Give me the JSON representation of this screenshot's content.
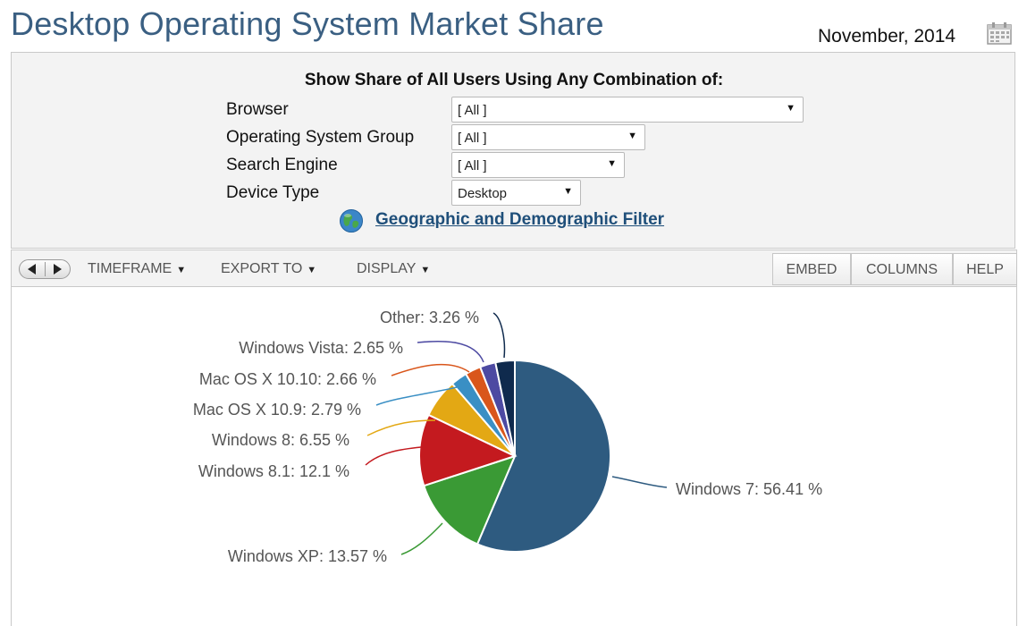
{
  "header": {
    "title": "Desktop Operating System Market Share",
    "date": "November, 2014"
  },
  "filters": {
    "heading": "Show Share of All Users Using Any Combination of:",
    "rows": [
      {
        "label": "Browser",
        "value": "[ All ]"
      },
      {
        "label": "Operating System Group",
        "value": "[ All ]"
      },
      {
        "label": "Search Engine",
        "value": "[ All ]"
      },
      {
        "label": "Device Type",
        "value": "Desktop"
      }
    ],
    "geo_link": "Geographic and Demographic Filter"
  },
  "toolbar": {
    "menus": [
      "TIMEFRAME",
      "EXPORT TO",
      "DISPLAY"
    ],
    "buttons": [
      "EMBED",
      "COLUMNS",
      "HELP"
    ]
  },
  "chart_data": {
    "type": "pie",
    "slices": [
      {
        "name": "Windows 7",
        "value": 56.41,
        "label": "Windows 7: 56.41 %",
        "color": "#2e5b80"
      },
      {
        "name": "Windows XP",
        "value": 13.57,
        "label": "Windows XP: 13.57 %",
        "color": "#3a9a35"
      },
      {
        "name": "Windows 8.1",
        "value": 12.1,
        "label": "Windows 8.1: 12.1 %",
        "color": "#c41a1f"
      },
      {
        "name": "Windows 8",
        "value": 6.55,
        "label": "Windows 8: 6.55 %",
        "color": "#e3a814"
      },
      {
        "name": "Mac OS X 10.9",
        "value": 2.79,
        "label": "Mac OS X 10.9: 2.79 %",
        "color": "#3a8fc4"
      },
      {
        "name": "Mac OS X 10.10",
        "value": 2.66,
        "label": "Mac OS X 10.10: 2.66 %",
        "color": "#d9561b"
      },
      {
        "name": "Windows Vista",
        "value": 2.65,
        "label": "Windows Vista: 2.65 %",
        "color": "#4d4aa2"
      },
      {
        "name": "Other",
        "value": 3.26,
        "label": "Other: 3.26 %",
        "color": "#0f2a4d"
      }
    ]
  }
}
